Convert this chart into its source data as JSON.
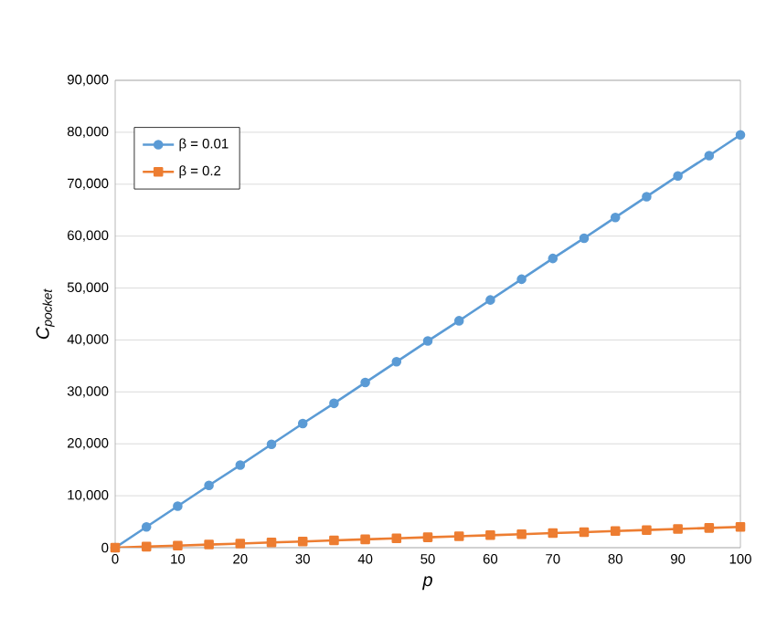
{
  "chart_data": {
    "type": "line",
    "xlabel": "p",
    "ylabel": "C$_{pocket}$",
    "x": [
      0,
      5,
      10,
      15,
      20,
      25,
      30,
      35,
      40,
      45,
      50,
      55,
      60,
      65,
      70,
      75,
      80,
      85,
      90,
      95,
      100
    ],
    "series": [
      {
        "name": "β = 0.01",
        "color": "#5b9bd5",
        "marker": "circle",
        "values": [
          0,
          4000,
          8000,
          12000,
          15900,
          19900,
          23900,
          27800,
          31800,
          35800,
          39800,
          43700,
          47700,
          51700,
          55700,
          59600,
          63600,
          67600,
          71600,
          75500,
          79500
        ]
      },
      {
        "name": "β = 0.2",
        "color": "#ed7d31",
        "marker": "square",
        "values": [
          0,
          200,
          400,
          600,
          800,
          1000,
          1200,
          1400,
          1600,
          1800,
          2000,
          2200,
          2400,
          2600,
          2800,
          3000,
          3200,
          3400,
          3600,
          3800,
          4000
        ]
      }
    ],
    "xlim": [
      0,
      100
    ],
    "xticks": [
      0,
      10,
      20,
      30,
      40,
      50,
      60,
      70,
      80,
      90,
      100
    ],
    "ylim": [
      0,
      90000
    ],
    "yticks": [
      {
        "value": 0,
        "label": "0"
      },
      {
        "value": 10000,
        "label": "10,000"
      },
      {
        "value": 20000,
        "label": "20,000"
      },
      {
        "value": 30000,
        "label": "30,000"
      },
      {
        "value": 40000,
        "label": "40,000"
      },
      {
        "value": 50000,
        "label": "50,000"
      },
      {
        "value": 60000,
        "label": "60,000"
      },
      {
        "value": 70000,
        "label": "70,000"
      },
      {
        "value": 80000,
        "label": "80,000"
      },
      {
        "value": 90000,
        "label": "90,000"
      }
    ],
    "grid": "y",
    "legend": "top left",
    "line_style": "solid"
  }
}
